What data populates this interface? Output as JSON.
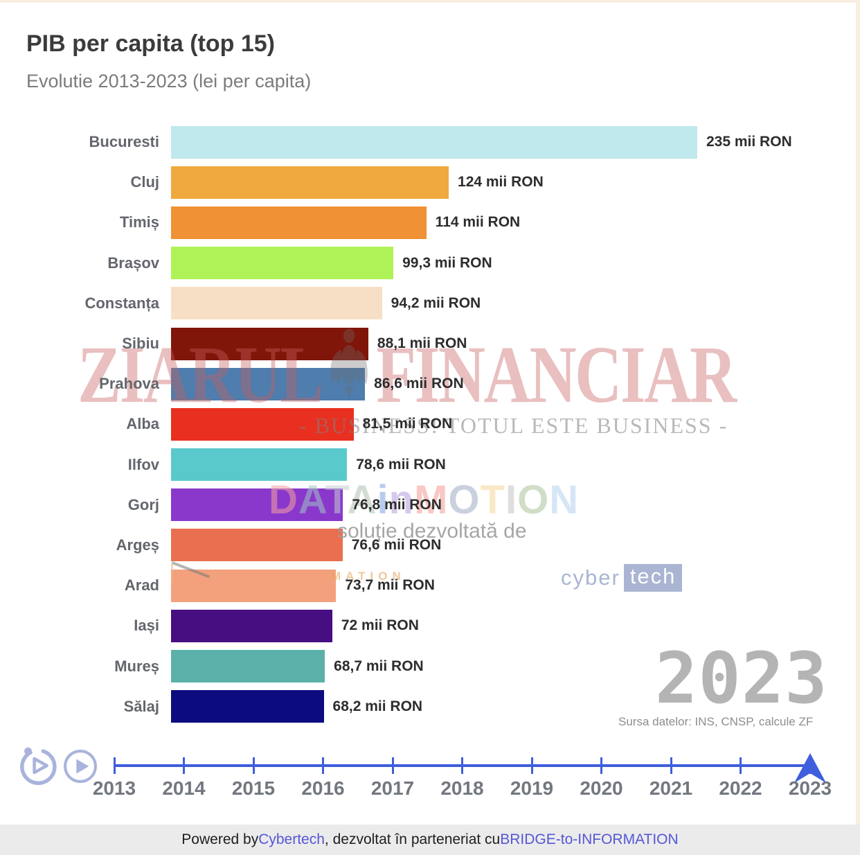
{
  "header": {
    "title": "PIB per capita (top 15)",
    "subtitle": "Evolutie 2013-2023 (lei per capita)"
  },
  "chart_data": {
    "type": "bar",
    "orientation": "horizontal",
    "title": "PIB per capita (top 15)",
    "subtitle": "Evolutie 2013-2023 (lei per capita)",
    "unit": "mii RON",
    "xlim": [
      0,
      235
    ],
    "grid": false,
    "legend": false,
    "categories": [
      "Bucuresti",
      "Cluj",
      "Timiș",
      "Brașov",
      "Constanța",
      "Sibiu",
      "Prahova",
      "Alba",
      "Ilfov",
      "Gorj",
      "Argeș",
      "Arad",
      "Iași",
      "Mureș",
      "Sălaj"
    ],
    "values": [
      235,
      124,
      114,
      99.3,
      94.2,
      88.1,
      86.6,
      81.5,
      78.6,
      76.8,
      76.6,
      73.7,
      72,
      68.7,
      68.2
    ],
    "value_labels": [
      "235 mii RON",
      "124 mii RON",
      "114 mii RON",
      "99,3 mii RON",
      "94,2 mii RON",
      "88,1 mii RON",
      "86,6 mii RON",
      "81,5 mii RON",
      "78,6 mii RON",
      "76,8 mii RON",
      "76,6 mii RON",
      "73,7 mii RON",
      "72 mii RON",
      "68,7 mii RON",
      "68,2 mii RON"
    ],
    "colors": [
      "#bfe9ec",
      "#f0a93e",
      "#ef9134",
      "#aff257",
      "#f7dfc5",
      "#801509",
      "#4e7dae",
      "#e93020",
      "#5ac9cc",
      "#8a38cb",
      "#e96f50",
      "#f3a17d",
      "#470e82",
      "#5bb1a9",
      "#0d0c7e"
    ]
  },
  "watermarks": {
    "ziarul_financiar": {
      "word1": "ZIARUL",
      "word2": "FINANCIAR"
    },
    "slogan": "- BUSINESS! TOTUL ESTE BUSINESS -",
    "data_in_motion": {
      "letters": [
        {
          "ch": "D",
          "color": "#f5a3a3"
        },
        {
          "ch": "A",
          "color": "#9fc6c2"
        },
        {
          "ch": "T",
          "color": "#c2cfcf"
        },
        {
          "ch": "A",
          "color": "#b2c2b2"
        },
        {
          "ch": "i",
          "color": "#7da3e0"
        },
        {
          "ch": "n",
          "color": "#b49fe0"
        },
        {
          "ch": "M",
          "color": "#f59a94"
        },
        {
          "ch": "O",
          "color": "#9fabc4"
        },
        {
          "ch": "T",
          "color": "#f5d79a"
        },
        {
          "ch": "I",
          "color": "#c4c4c4"
        },
        {
          "ch": "O",
          "color": "#aac49a"
        },
        {
          "ch": "N",
          "color": "#b8d2ef"
        }
      ]
    },
    "solutie": "soluție dezvoltată de",
    "cybertech": {
      "part1": "cyber",
      "part2": "tech"
    },
    "mation_fragment": "MATION"
  },
  "icons": {
    "replay": "replay-icon",
    "play": "play-icon",
    "eagle": "zf-eagle-icon",
    "slider": "timeline-slider-arrow-icon"
  },
  "side_panel": {
    "year_big": "2023",
    "source": "Sursa datelor: INS, CNSP, calcule ZF"
  },
  "timeline": {
    "years": [
      "2013",
      "2014",
      "2015",
      "2016",
      "2017",
      "2018",
      "2019",
      "2020",
      "2021",
      "2022",
      "2023"
    ],
    "selected_year": "2023",
    "accent_color": "#3f5edd"
  },
  "footer": {
    "parts": [
      {
        "text": "Powered by ",
        "link": false
      },
      {
        "text": "Cybertech",
        "link": true
      },
      {
        "text": ", dezvoltat în parteneriat cu ",
        "link": false
      },
      {
        "text": "BRIDGE-to-INFORMATION",
        "link": true
      }
    ]
  }
}
